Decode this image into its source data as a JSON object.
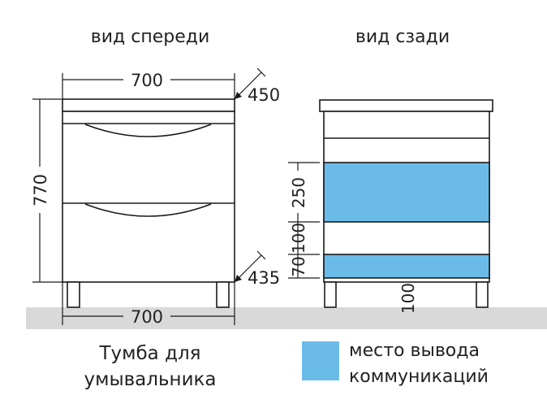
{
  "titles": {
    "front": "вид спереди",
    "back": "вид сзади"
  },
  "front_dimensions": {
    "width_top": "700",
    "depth_top": "450",
    "height": "770",
    "depth_bottom": "435",
    "width_bottom": "700"
  },
  "back_dimensions": {
    "zone_upper": "250",
    "gap": "100",
    "zone_lower": "70",
    "leg_height": "100"
  },
  "caption": {
    "line1": "Тумба для",
    "line2": "умывальника"
  },
  "legend": {
    "line1": "место вывода",
    "line2": "коммуникаций",
    "color": "#6bbbe8"
  },
  "colors": {
    "floor": "#d9d9d9",
    "communication_zone": "#6bbbe8"
  }
}
